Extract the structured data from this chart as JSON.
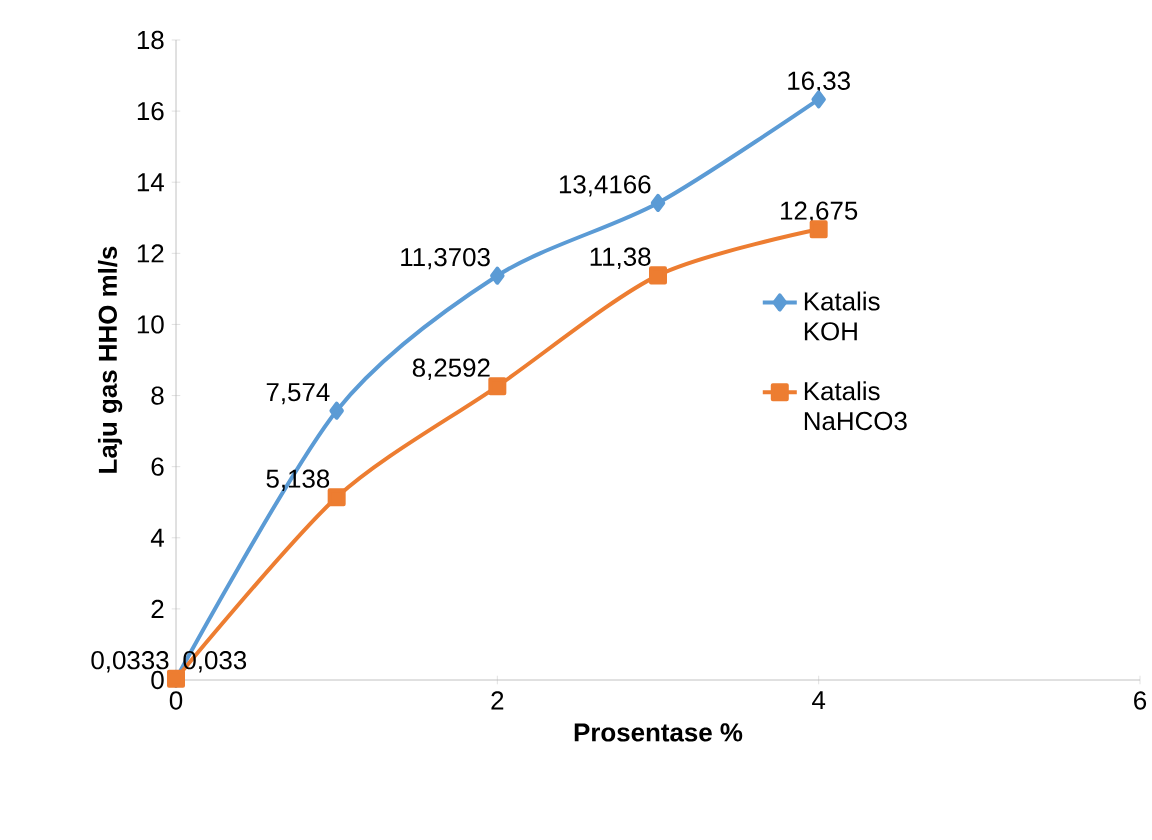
{
  "chart_data": {
    "type": "line",
    "xlabel": "Prosentase %",
    "ylabel": "Laju gas HHO ml/s",
    "x": [
      0,
      1,
      2,
      3,
      4
    ],
    "series": [
      {
        "name": "Katalis KOH",
        "color": "#5b9bd5",
        "marker": "diamond",
        "values": [
          0.0333,
          7.574,
          11.3703,
          13.4166,
          16.33
        ],
        "value_labels": [
          "0,0333",
          "7,574",
          "11,3703",
          "13,4166",
          "16,33"
        ]
      },
      {
        "name": "Katalis NaHCO3",
        "color": "#ed7d31",
        "marker": "square",
        "values": [
          0.033,
          5.138,
          8.2592,
          11.38,
          12.675
        ],
        "value_labels": [
          "0,033",
          "5,138",
          "8,2592",
          "11,38",
          "12,675"
        ]
      }
    ],
    "xlim": [
      0,
      6
    ],
    "xticks": [
      0,
      2,
      4,
      6
    ],
    "ylim": [
      0,
      18
    ],
    "yticks": [
      0,
      2,
      4,
      6,
      8,
      10,
      12,
      14,
      16,
      18
    ],
    "legend": "right",
    "grid": false
  }
}
